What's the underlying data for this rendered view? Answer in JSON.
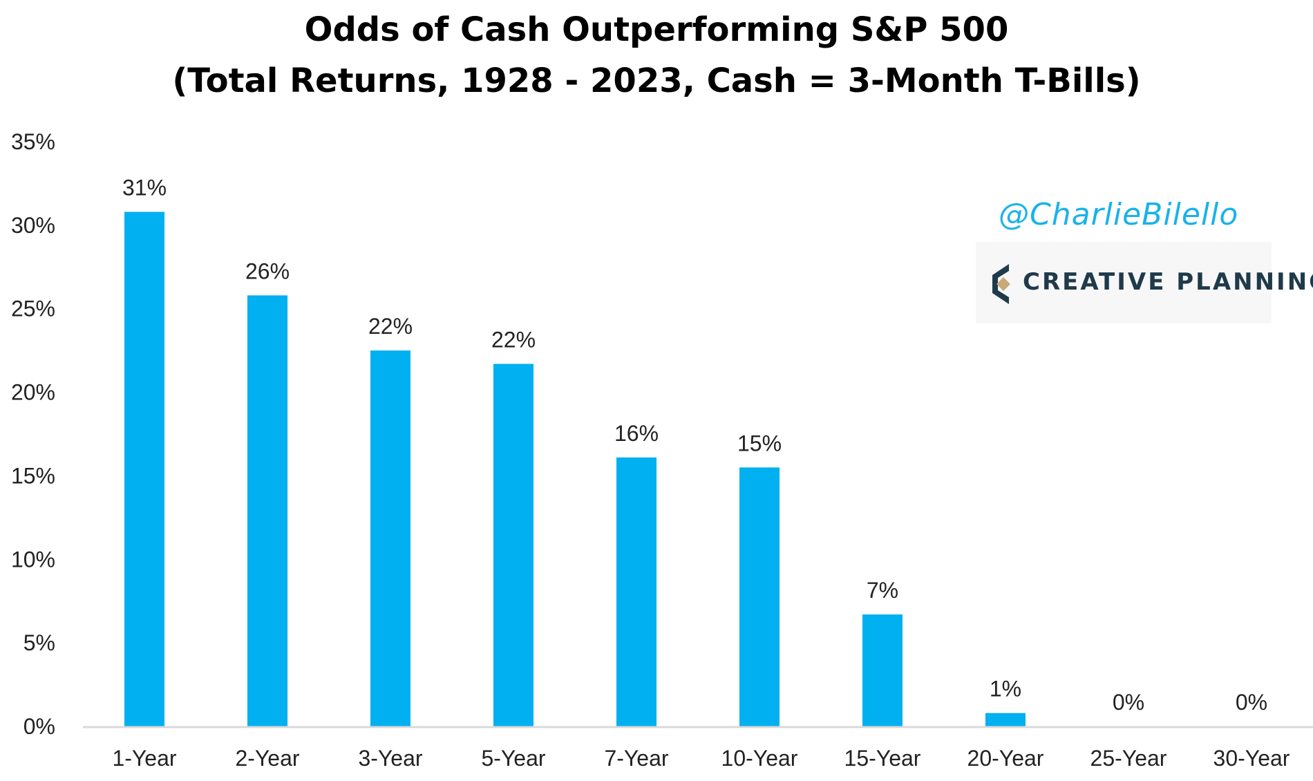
{
  "chart_data": {
    "type": "bar",
    "title": "Odds of Cash Outperforming S&P 500",
    "subtitle": "(Total Returns, 1928 - 2023, Cash = 3-Month T-Bills)",
    "categories": [
      "1-Year",
      "2-Year",
      "3-Year",
      "5-Year",
      "7-Year",
      "10-Year",
      "15-Year",
      "20-Year",
      "25-Year",
      "30-Year"
    ],
    "values": [
      30.8,
      25.8,
      22.5,
      21.7,
      16.1,
      15.5,
      6.7,
      0.8,
      0,
      0
    ],
    "data_labels": [
      "31%",
      "26%",
      "22%",
      "22%",
      "16%",
      "15%",
      "7%",
      "1%",
      "0%",
      "0%"
    ],
    "ylim": [
      0,
      35
    ],
    "yticks": [
      0,
      5,
      10,
      15,
      20,
      25,
      30,
      35
    ],
    "ytick_labels": [
      "0%",
      "5%",
      "10%",
      "15%",
      "20%",
      "25%",
      "30%",
      "35%"
    ],
    "xlabel": "",
    "ylabel": "",
    "grid": false,
    "legend": "none",
    "bar_color": "#00b0f0",
    "axis_color": "#d9d9d9"
  },
  "watermark": {
    "handle": "@CharlieBilello",
    "handle_color": "#19b2ea",
    "logo_text": "CREATIVE PLANNING",
    "logo_text_color": "#1f3a4b",
    "logo_accent_colors": [
      "#1f3a4b",
      "#c8a97a"
    ]
  }
}
